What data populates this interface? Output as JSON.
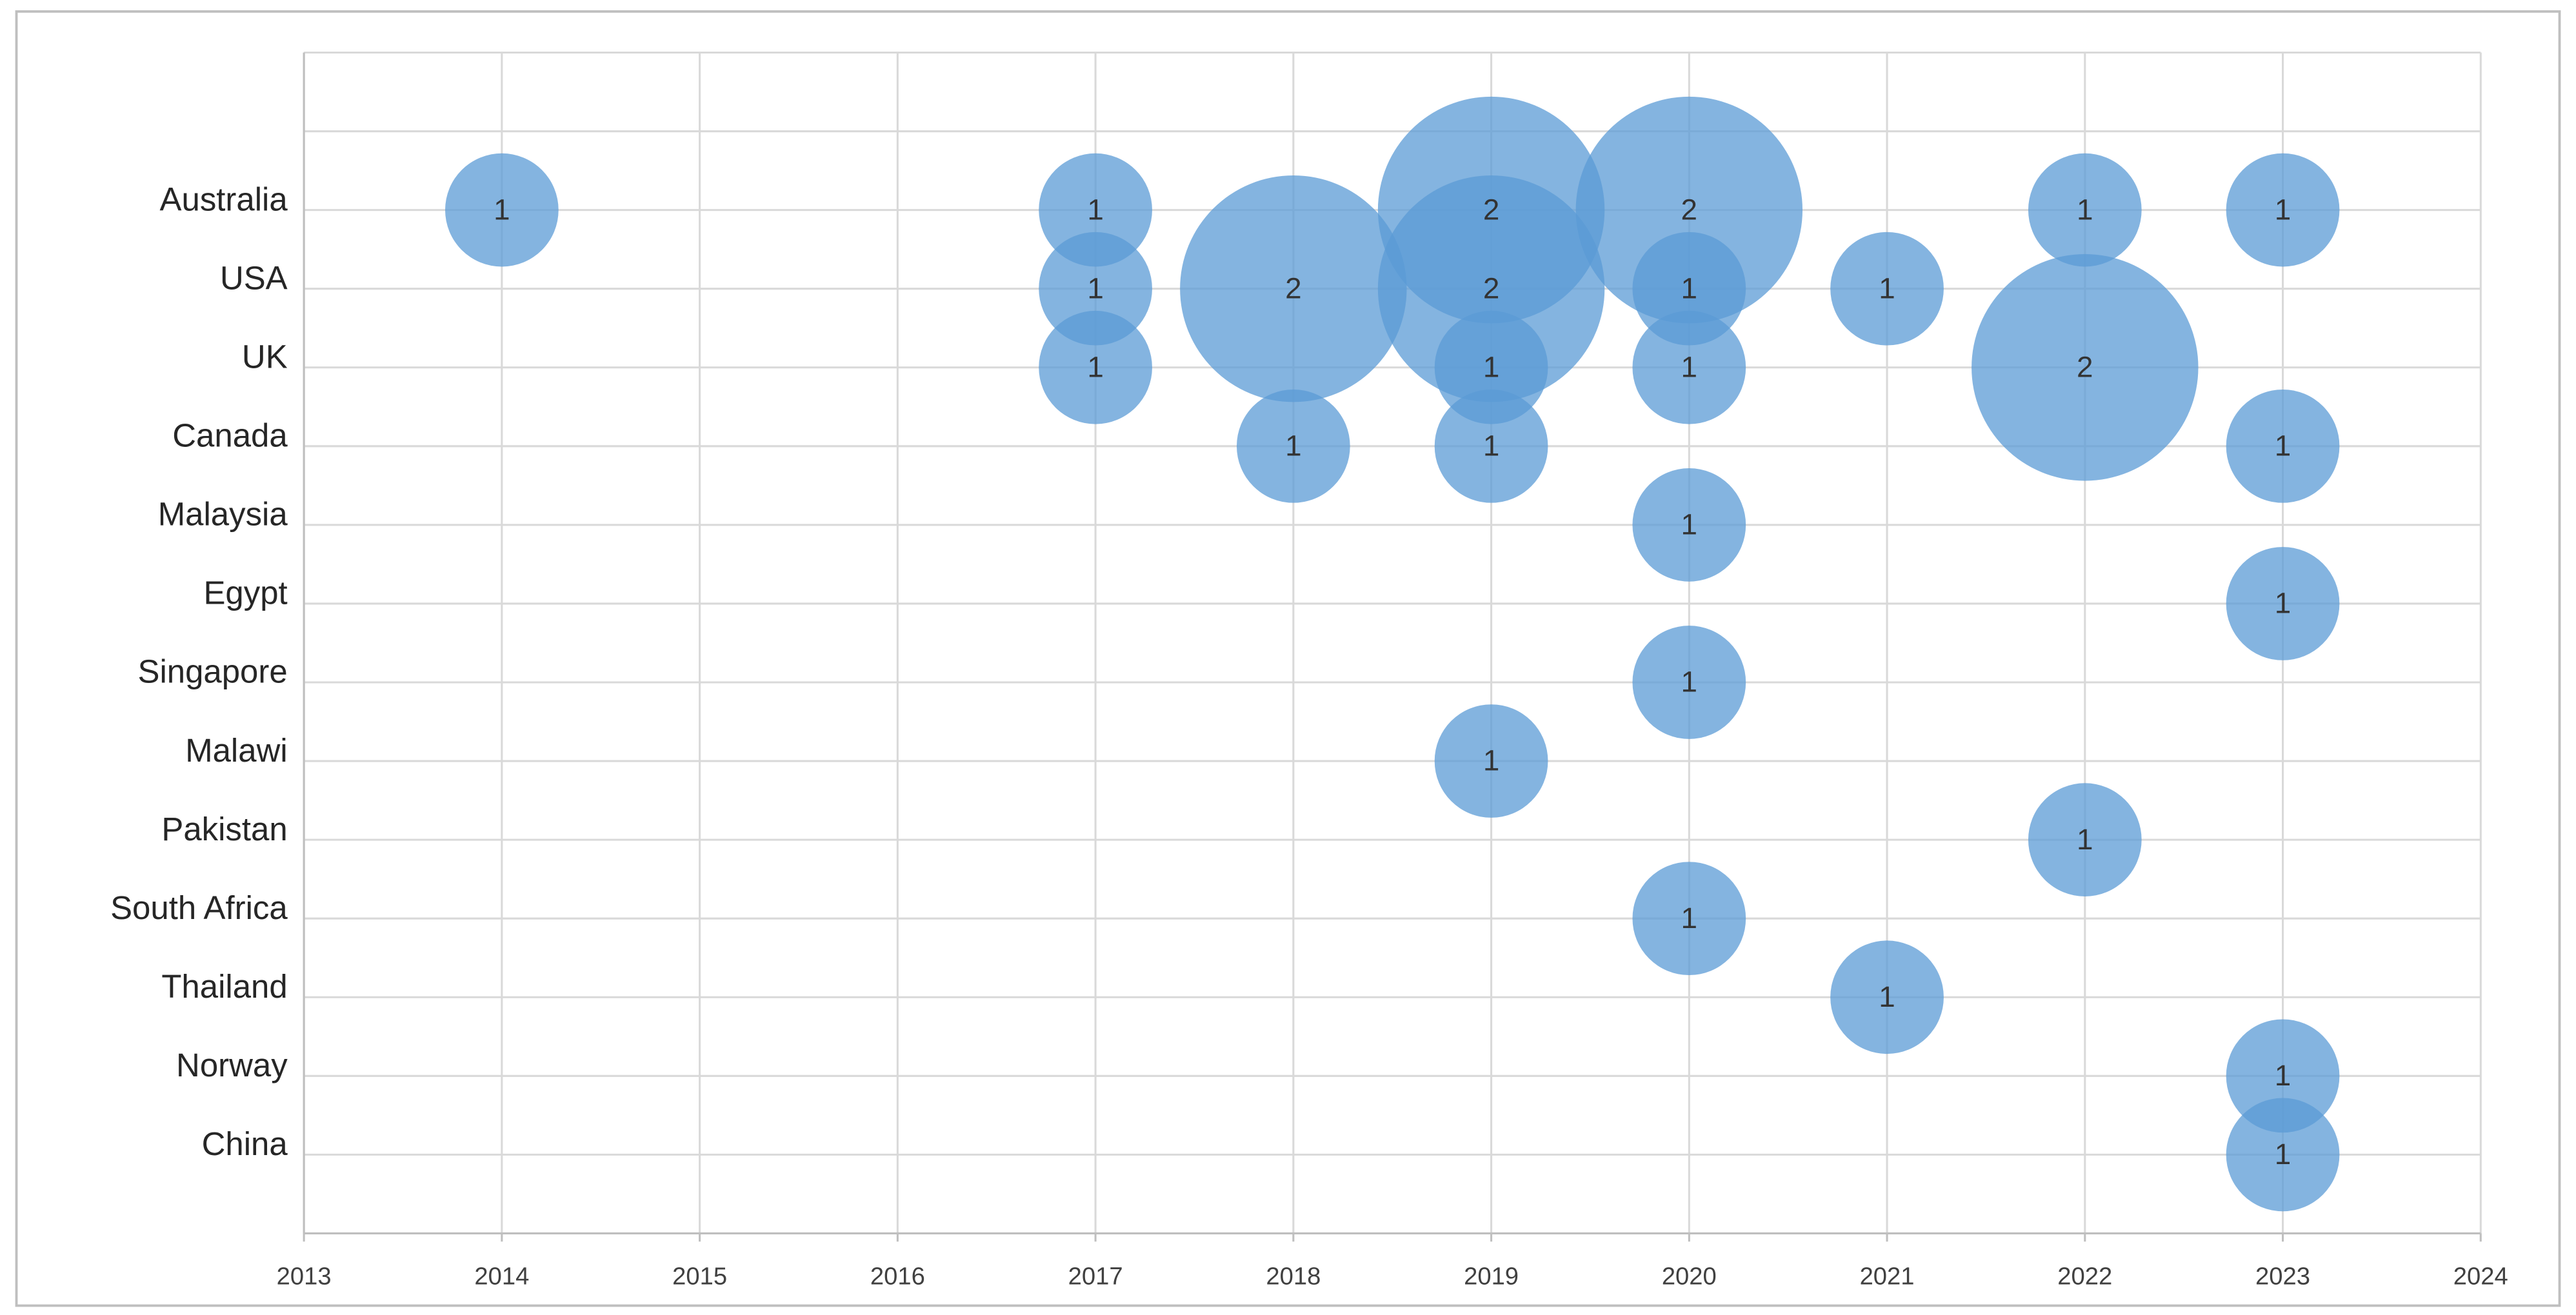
{
  "chart_data": {
    "type": "bubble",
    "xlim": [
      2013,
      2024
    ],
    "xticks": [
      2013,
      2014,
      2015,
      2016,
      2017,
      2018,
      2019,
      2020,
      2021,
      2022,
      2023,
      2024
    ],
    "y_categories": [
      null,
      null,
      "Australia",
      "USA",
      "UK",
      "Canada",
      "Malaysia",
      "Egypt",
      "Singapore",
      "Malawi",
      "Pakistan",
      "South Africa",
      "Thailand",
      "Norway",
      "China",
      null
    ],
    "grid": true,
    "series": [
      {
        "color": "#5b9bd5",
        "points": [
          {
            "x": 2014,
            "y": "Australia",
            "size": 1
          },
          {
            "x": 2017,
            "y": "Australia",
            "size": 1
          },
          {
            "x": 2019,
            "y": "Australia",
            "size": 2
          },
          {
            "x": 2020,
            "y": "Australia",
            "size": 2
          },
          {
            "x": 2022,
            "y": "Australia",
            "size": 1
          },
          {
            "x": 2023,
            "y": "Australia",
            "size": 1
          },
          {
            "x": 2017,
            "y": "USA",
            "size": 1
          },
          {
            "x": 2018,
            "y": "USA",
            "size": 2
          },
          {
            "x": 2019,
            "y": "USA",
            "size": 2
          },
          {
            "x": 2020,
            "y": "USA",
            "size": 1
          },
          {
            "x": 2021,
            "y": "USA",
            "size": 1
          },
          {
            "x": 2017,
            "y": "UK",
            "size": 1
          },
          {
            "x": 2019,
            "y": "UK",
            "size": 1
          },
          {
            "x": 2020,
            "y": "UK",
            "size": 1
          },
          {
            "x": 2022,
            "y": "UK",
            "size": 2
          },
          {
            "x": 2018,
            "y": "Canada",
            "size": 1
          },
          {
            "x": 2019,
            "y": "Canada",
            "size": 1
          },
          {
            "x": 2023,
            "y": "Canada",
            "size": 1
          },
          {
            "x": 2020,
            "y": "Malaysia",
            "size": 1
          },
          {
            "x": 2023,
            "y": "Egypt",
            "size": 1
          },
          {
            "x": 2020,
            "y": "Singapore",
            "size": 1
          },
          {
            "x": 2019,
            "y": "Malawi",
            "size": 1
          },
          {
            "x": 2022,
            "y": "Pakistan",
            "size": 1
          },
          {
            "x": 2020,
            "y": "South Africa",
            "size": 1
          },
          {
            "x": 2021,
            "y": "Thailand",
            "size": 1
          },
          {
            "x": 2023,
            "y": "Norway",
            "size": 1
          },
          {
            "x": 2023,
            "y": "China",
            "size": 1
          }
        ]
      }
    ]
  }
}
